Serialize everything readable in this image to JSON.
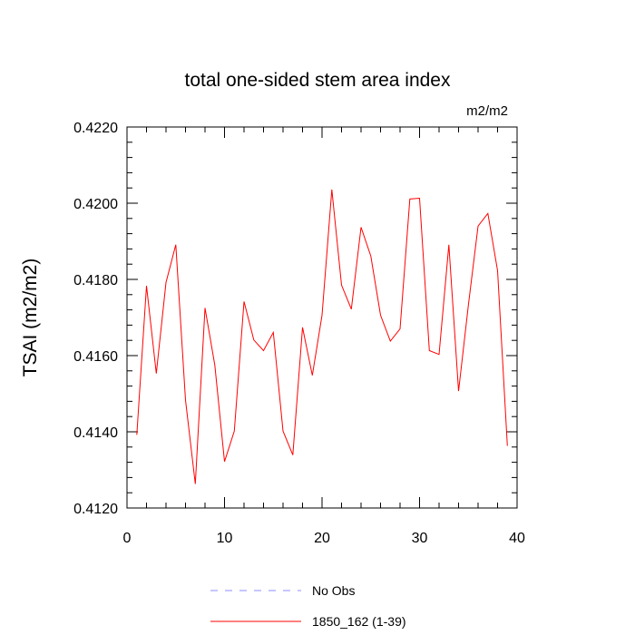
{
  "chart_data": {
    "type": "line",
    "title": "total one-sided stem area index",
    "units_label": "m2/m2",
    "xlabel": "",
    "ylabel": "TSAI  (m2/m2)",
    "xlim": [
      0,
      40
    ],
    "ylim": [
      0.412,
      0.422
    ],
    "x_ticks": [
      0,
      10,
      20,
      30,
      40
    ],
    "x_tick_labels": [
      "0",
      "10",
      "20",
      "30",
      "40"
    ],
    "y_ticks": [
      0.412,
      0.414,
      0.416,
      0.418,
      0.42,
      0.422
    ],
    "y_tick_labels": [
      "0.4120",
      "0.4140",
      "0.4160",
      "0.4180",
      "0.4200",
      "0.4220"
    ],
    "grid": false,
    "legend_position": "bottom",
    "legend": [
      {
        "label": "No Obs",
        "color": "#8c8cff",
        "style": "dashed"
      },
      {
        "label": "1850_162 (1-39)",
        "color": "#ff0000",
        "style": "solid"
      }
    ],
    "series": [
      {
        "name": "1850_162 (1-39)",
        "color": "#ff0000",
        "x": [
          1,
          2,
          3,
          4,
          5,
          6,
          7,
          8,
          9,
          10,
          11,
          12,
          13,
          14,
          15,
          16,
          17,
          18,
          19,
          20,
          21,
          22,
          23,
          24,
          25,
          26,
          27,
          28,
          29,
          30,
          31,
          32,
          33,
          34,
          35,
          36,
          37,
          38,
          39
        ],
        "values": [
          0.41392,
          0.41783,
          0.41553,
          0.41792,
          0.41891,
          0.41483,
          0.41263,
          0.41725,
          0.41575,
          0.41322,
          0.41402,
          0.41742,
          0.41641,
          0.41613,
          0.41661,
          0.41402,
          0.41339,
          0.41674,
          0.41548,
          0.41706,
          0.42036,
          0.41785,
          0.41722,
          0.41937,
          0.41861,
          0.41706,
          0.41638,
          0.4167,
          0.42011,
          0.42013,
          0.41613,
          0.41603,
          0.41891,
          0.41507,
          0.41732,
          0.4194,
          0.41973,
          0.41823,
          0.41363
        ]
      }
    ]
  }
}
